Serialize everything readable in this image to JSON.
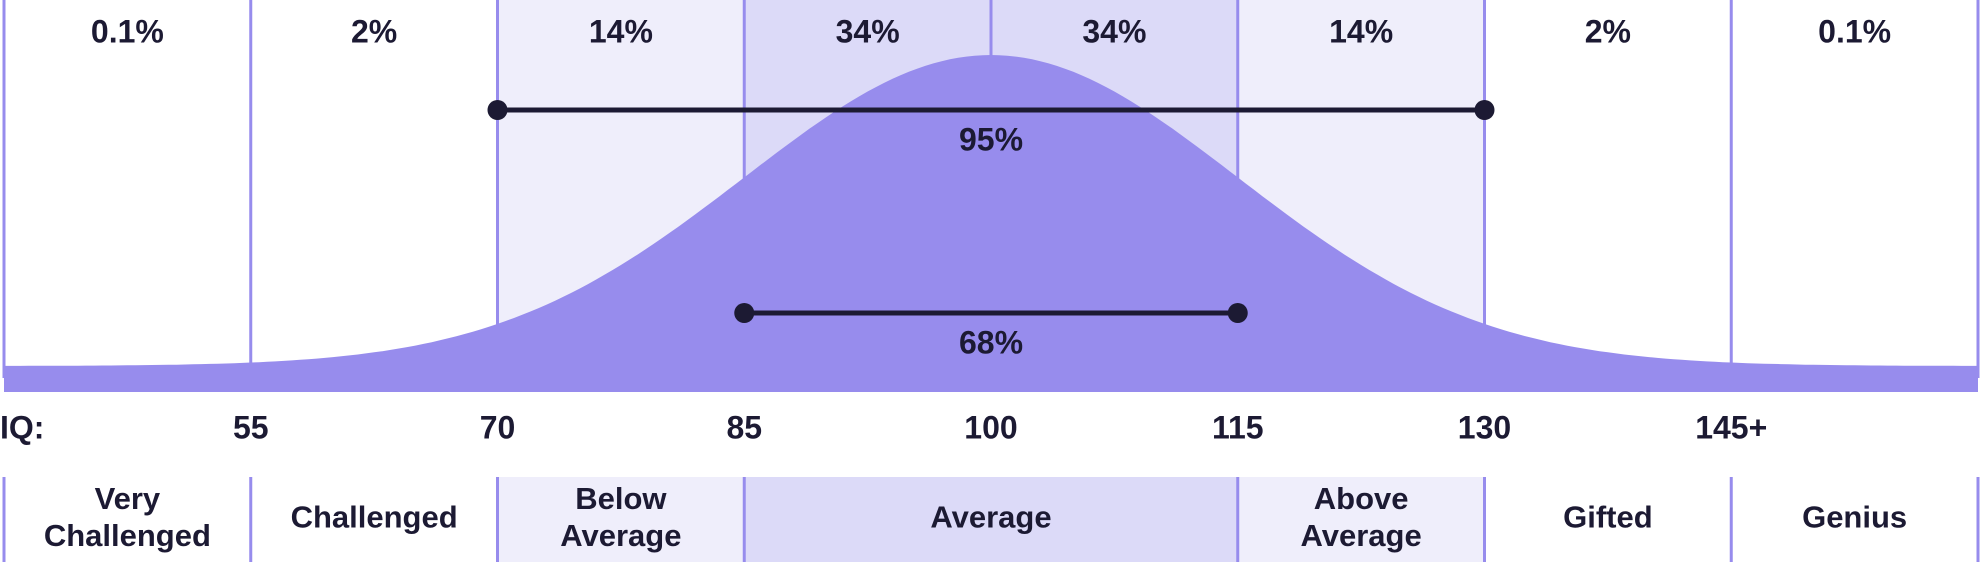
{
  "chart_data": {
    "type": "area",
    "title": "",
    "xlabel": "",
    "ylabel": "",
    "axis_prefix": "IQ:",
    "x_ticks": [
      "55",
      "70",
      "85",
      "100",
      "115",
      "130",
      "145+"
    ],
    "distribution": {
      "kind": "normal",
      "mean": 100,
      "sd": 15
    },
    "bands": [
      {
        "from": 40,
        "to": 55,
        "percent": "0.1%",
        "fill": "#ffffff"
      },
      {
        "from": 55,
        "to": 70,
        "percent": "2%",
        "fill": "#ffffff"
      },
      {
        "from": 70,
        "to": 85,
        "percent": "14%",
        "fill": "#efeefb"
      },
      {
        "from": 85,
        "to": 100,
        "percent": "34%",
        "fill": "#dcdaf8"
      },
      {
        "from": 100,
        "to": 115,
        "percent": "34%",
        "fill": "#dcdaf8"
      },
      {
        "from": 115,
        "to": 130,
        "percent": "14%",
        "fill": "#efeefb"
      },
      {
        "from": 130,
        "to": 145,
        "percent": "2%",
        "fill": "#ffffff"
      },
      {
        "from": 145,
        "to": 160,
        "percent": "0.1%",
        "fill": "#ffffff"
      }
    ],
    "ranges": [
      {
        "from": 70,
        "to": 130,
        "label": "95%"
      },
      {
        "from": 85,
        "to": 115,
        "label": "68%"
      }
    ],
    "categories": [
      {
        "from": 40,
        "to": 55,
        "lines": [
          "Very",
          "Challenged"
        ],
        "fill": "#ffffff"
      },
      {
        "from": 55,
        "to": 70,
        "lines": [
          "Challenged"
        ],
        "fill": "#ffffff"
      },
      {
        "from": 70,
        "to": 85,
        "lines": [
          "Below",
          "Average"
        ],
        "fill": "#efeefb"
      },
      {
        "from": 85,
        "to": 115,
        "lines": [
          "Average"
        ],
        "fill": "#dcdaf8"
      },
      {
        "from": 115,
        "to": 130,
        "lines": [
          "Above",
          "Average"
        ],
        "fill": "#efeefb"
      },
      {
        "from": 130,
        "to": 145,
        "lines": [
          "Gifted"
        ],
        "fill": "#ffffff"
      },
      {
        "from": 145,
        "to": 160,
        "lines": [
          "Genius"
        ],
        "fill": "#ffffff"
      }
    ],
    "colors": {
      "curve": "#978ced",
      "divider": "#978ced",
      "range_line": "#1c1a33",
      "text": "#1c1a33"
    }
  }
}
